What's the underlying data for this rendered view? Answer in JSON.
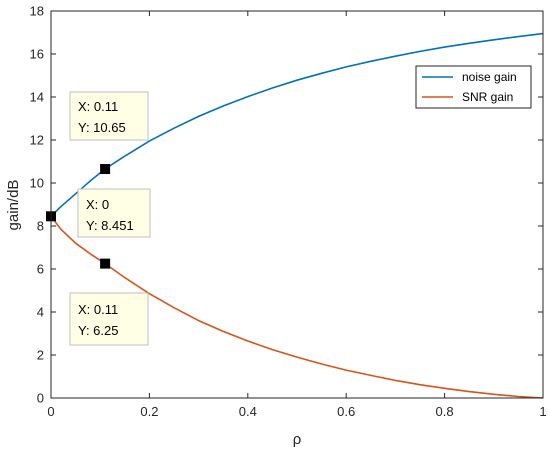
{
  "chart_data": {
    "type": "line",
    "xlabel": "ρ",
    "ylabel": "gain/dB",
    "xlim": [
      0,
      1
    ],
    "ylim": [
      0,
      18
    ],
    "xticks": [
      "0",
      "0.2",
      "0.4",
      "0.6",
      "0.8",
      "1"
    ],
    "yticks": [
      "0",
      "2",
      "4",
      "6",
      "8",
      "10",
      "12",
      "14",
      "16",
      "18"
    ],
    "legend_position": "top-right",
    "series": [
      {
        "name": "noise gain",
        "color": "#0072BD",
        "x": [
          0,
          0.02,
          0.05,
          0.08,
          0.11,
          0.15,
          0.2,
          0.25,
          0.3,
          0.35,
          0.4,
          0.45,
          0.5,
          0.55,
          0.6,
          0.65,
          0.7,
          0.75,
          0.8,
          0.85,
          0.9,
          0.95,
          1.0
        ],
        "y": [
          8.45,
          8.9,
          9.5,
          10.1,
          10.65,
          11.25,
          11.95,
          12.55,
          13.1,
          13.58,
          14.02,
          14.42,
          14.78,
          15.1,
          15.4,
          15.66,
          15.9,
          16.12,
          16.32,
          16.5,
          16.66,
          16.81,
          16.95
        ]
      },
      {
        "name": "SNR gain",
        "color": "#D95319",
        "x": [
          0,
          0.02,
          0.05,
          0.08,
          0.11,
          0.15,
          0.2,
          0.25,
          0.3,
          0.35,
          0.4,
          0.45,
          0.5,
          0.55,
          0.6,
          0.65,
          0.7,
          0.75,
          0.8,
          0.85,
          0.9,
          0.95,
          1.0
        ],
        "y": [
          8.45,
          7.85,
          7.2,
          6.7,
          6.25,
          5.6,
          4.85,
          4.2,
          3.6,
          3.1,
          2.65,
          2.25,
          1.9,
          1.58,
          1.3,
          1.05,
          0.82,
          0.62,
          0.45,
          0.3,
          0.17,
          0.07,
          0.0
        ]
      }
    ],
    "datatips": [
      {
        "x": 0.11,
        "y": 10.65,
        "x_text": "X: 0.11",
        "y_text": "Y: 10.65"
      },
      {
        "x": 0,
        "y": 8.451,
        "x_text": "X: 0",
        "y_text": "Y: 8.451"
      },
      {
        "x": 0.11,
        "y": 6.25,
        "x_text": "X: 0.11",
        "y_text": "Y: 6.25"
      }
    ]
  }
}
